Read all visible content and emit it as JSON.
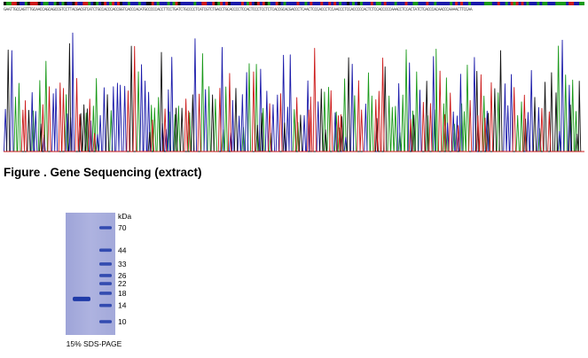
{
  "sequencing": {
    "caption": "Figure . Gene Sequencing (extract)",
    "bases": "GAATTGCCAGTTTGCAACCAGCAGCCGTCCTTACGACGTCATCTGCCACCCACCGGTCACCCACATGCCCCCACCTTCCTGATCTGCCCCTCATCGTCTGACCTGCACCCCTCCACTCCCTCCTCTCACCGCACGACCCTCAACTCCCACCCTCCAACCCTCCACCCCCACTCTCCACCCCCAAACCTCCACTATCTCACCCACAACCCAAAACTTCCAA",
    "colors": {
      "A": "#1a9a1a",
      "C": "#1a1aaa",
      "G": "#111111",
      "T": "#cc1a1a"
    }
  },
  "gel": {
    "marker_unit": "kDa",
    "markers": [
      "70",
      "44",
      "33",
      "26",
      "22",
      "18",
      "14",
      "10"
    ],
    "marker_kda": [
      70,
      44,
      33,
      26,
      22,
      18,
      14,
      10
    ],
    "sample_band_kda": 16,
    "caption": "15% SDS-PAGE",
    "gel_color": "#a9aedd",
    "band_color": "#1f3aa8"
  }
}
